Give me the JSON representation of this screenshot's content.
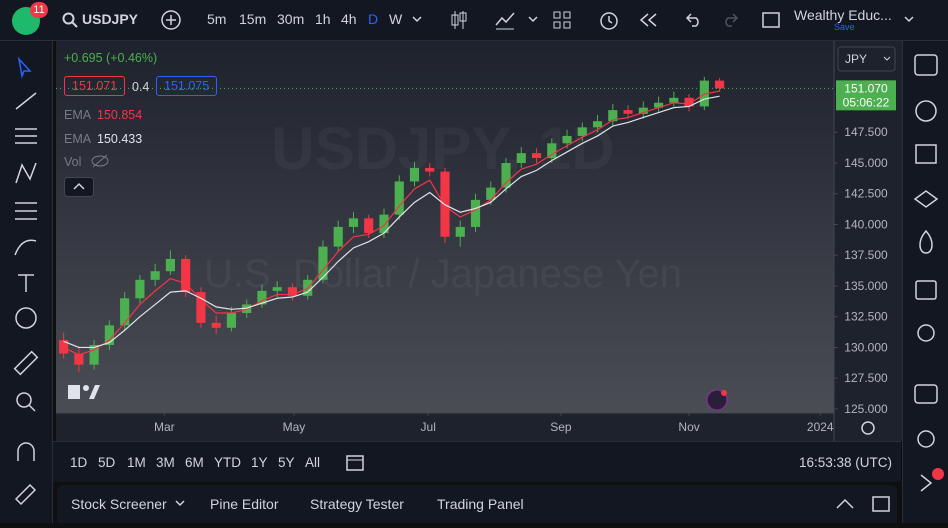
{
  "header": {
    "badge": "11",
    "symbol": "USDJPY",
    "intervals": [
      "5m",
      "15m",
      "30m",
      "1h",
      "4h",
      "D",
      "W"
    ],
    "layout_name": "Wealthy Educ...",
    "save": "Save"
  },
  "legend": {
    "change": "+0.695 (+0.46%)",
    "bid": 151.071,
    "spread": 0.4,
    "ask": 151.075,
    "indicators": [
      {
        "name": "EMA",
        "value": 150.854,
        "color": "#f23645"
      },
      {
        "name": "EMA",
        "value": 150.433,
        "color": "#e0e3eb"
      }
    ],
    "volume": "Vol"
  },
  "watermark": {
    "symbol": "USDJPY, 1D",
    "description": "U.S. Dollar / Japanese Yen"
  },
  "chart_data": {
    "type": "candlestick",
    "currency": "JPY",
    "up_color": "#4caf50",
    "down_color": "#f23645",
    "grid": false,
    "xlim": [
      -0.5,
      50.5
    ],
    "xticks": [
      {
        "value": 6.6,
        "label": "Mar"
      },
      {
        "value": 15.1,
        "label": "May"
      },
      {
        "value": 23.9,
        "label": "Jul"
      },
      {
        "value": 32.6,
        "label": "Sep"
      },
      {
        "value": 41.0,
        "label": "Nov"
      },
      {
        "value": 49.6,
        "label": "2024"
      }
    ],
    "ylim": [
      124.67,
      154.92
    ],
    "yticks": [
      {
        "value": 125,
        "label": "125.000"
      },
      {
        "value": 127.5,
        "label": "127.500"
      },
      {
        "value": 130,
        "label": "130.000"
      },
      {
        "value": 132.5,
        "label": "132.500"
      },
      {
        "value": 135,
        "label": "135.000"
      },
      {
        "value": 137.5,
        "label": "137.500"
      },
      {
        "value": 140,
        "label": "140.000"
      },
      {
        "value": 142.5,
        "label": "142.500"
      },
      {
        "value": 145,
        "label": "145.000"
      },
      {
        "value": 147.5,
        "label": "147.500"
      }
    ],
    "open": [
      130.6,
      129.5,
      128.6,
      130.2,
      131.8,
      134.0,
      135.5,
      136.2,
      137.2,
      134.5,
      132.0,
      131.6,
      132.8,
      133.5,
      134.6,
      134.9,
      134.2,
      135.5,
      138.2,
      139.8,
      140.5,
      139.3,
      140.8,
      143.5,
      144.6,
      144.3,
      139.0,
      139.8,
      142.0,
      143.0,
      145.0,
      145.8,
      145.4,
      146.6,
      147.2,
      147.9,
      148.4,
      149.3,
      149.0,
      149.5,
      149.9,
      150.3,
      149.6,
      151.7
    ],
    "high": [
      131.2,
      130.1,
      130.6,
      132.2,
      134.5,
      135.9,
      136.8,
      137.9,
      137.5,
      134.9,
      132.6,
      133.3,
      133.9,
      135.1,
      135.4,
      135.2,
      135.9,
      138.7,
      140.3,
      141.0,
      140.8,
      141.3,
      144.0,
      145.1,
      145.0,
      144.6,
      140.3,
      142.5,
      143.5,
      145.4,
      146.3,
      146.2,
      147.0,
      147.7,
      148.3,
      148.9,
      149.8,
      149.7,
      150.0,
      150.4,
      150.8,
      150.6,
      152.0,
      151.9
    ],
    "low": [
      129.1,
      128.0,
      128.2,
      129.8,
      131.4,
      133.6,
      135.0,
      135.9,
      134.1,
      131.6,
      131.1,
      131.3,
      132.4,
      133.2,
      134.1,
      133.8,
      133.9,
      135.2,
      137.8,
      139.3,
      138.9,
      138.9,
      140.4,
      143.1,
      143.9,
      138.5,
      138.2,
      139.4,
      141.6,
      142.6,
      144.6,
      145.0,
      145.0,
      146.2,
      146.8,
      147.5,
      148.0,
      148.6,
      148.6,
      149.1,
      149.6,
      149.2,
      149.3,
      150.8
    ],
    "close": [
      129.5,
      128.6,
      130.2,
      131.8,
      134.0,
      135.5,
      136.2,
      137.2,
      134.5,
      132.0,
      131.6,
      132.8,
      133.5,
      134.6,
      134.9,
      134.2,
      135.5,
      138.2,
      139.8,
      140.5,
      139.3,
      140.8,
      143.5,
      144.6,
      144.3,
      139.0,
      139.8,
      142.0,
      143.0,
      145.0,
      145.8,
      145.4,
      146.6,
      147.2,
      147.9,
      148.4,
      149.3,
      149.0,
      149.5,
      149.9,
      150.3,
      149.6,
      151.7,
      151.07
    ],
    "series": [
      {
        "name": "EMA",
        "color": "#f23645",
        "values": [
          130.0,
          129.4,
          129.8,
          130.6,
          132.0,
          133.5,
          134.6,
          135.6,
          135.2,
          133.9,
          132.8,
          132.8,
          133.1,
          133.8,
          134.3,
          134.3,
          134.8,
          136.3,
          137.8,
          139.0,
          139.2,
          139.9,
          141.5,
          142.9,
          143.6,
          141.5,
          140.6,
          141.2,
          142.0,
          143.4,
          144.5,
          144.9,
          145.7,
          146.4,
          147.1,
          147.7,
          148.5,
          148.7,
          149.1,
          149.5,
          149.9,
          149.8,
          150.6,
          150.85
        ]
      },
      {
        "name": "EMA",
        "color": "#e0e3eb",
        "values": [
          130.5,
          130.0,
          130.0,
          130.4,
          131.4,
          132.5,
          133.5,
          134.5,
          134.6,
          134.0,
          133.3,
          133.1,
          133.2,
          133.6,
          134.0,
          134.1,
          134.5,
          135.7,
          137.0,
          138.1,
          138.6,
          139.3,
          140.6,
          141.8,
          142.6,
          141.6,
          141.0,
          141.3,
          141.8,
          142.9,
          143.9,
          144.4,
          145.2,
          145.9,
          146.6,
          147.2,
          148.0,
          148.3,
          148.7,
          149.1,
          149.5,
          149.6,
          150.2,
          150.43
        ]
      }
    ],
    "last_price": {
      "value": 151.07,
      "label": "151.070"
    },
    "countdown": "05:06:22"
  },
  "range_bar": {
    "ranges": [
      "1D",
      "5D",
      "1M",
      "3M",
      "6M",
      "YTD",
      "1Y",
      "5Y",
      "All"
    ],
    "clock": "16:53:38 (UTC)"
  },
  "panel_tabs": [
    "Stock Screener",
    "Pine Editor",
    "Strategy Tester",
    "Trading Panel"
  ]
}
